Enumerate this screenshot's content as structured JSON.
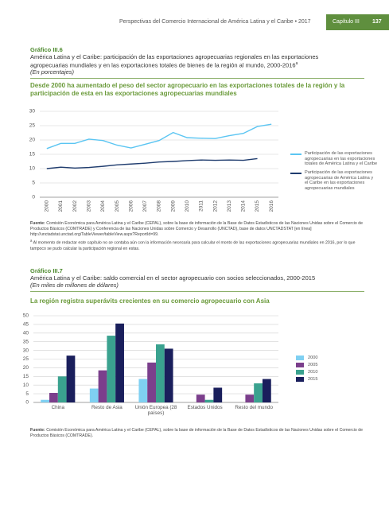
{
  "header": {
    "running_title": "Perspectivas del Comercio Internacional de América Latina y el Caribe • 2017",
    "chapter": "Capítulo III",
    "page": "137"
  },
  "chart_data": [
    {
      "type": "line",
      "figure_label": "Gráfico III.6",
      "title": "América Latina y el Caribe: participación de las exportaciones agropecuarias regionales en las exportaciones agropecuarias mundiales y en las exportaciones totales de bienes de la región al mundo, 2000-2016",
      "title_note_mark": "a",
      "subtitle": "(En porcentajes)",
      "heading": "Desde 2000 ha aumentado el peso del sector agropecuario en las exportaciones totales de la región y la participación de esta en las exportaciones agropecuarias mundiales",
      "categories": [
        "2000",
        "2001",
        "2002",
        "2003",
        "2004",
        "2005",
        "2006",
        "2007",
        "2008",
        "2009",
        "2010",
        "2011",
        "2012",
        "2013",
        "2014",
        "2015",
        "2016"
      ],
      "series": [
        {
          "name": "Participación de las exportaciones agropecuarias en las exportaciones totales de América Latina y el Caribe",
          "color": "#5bc5f2",
          "values": [
            17,
            18.8,
            18.8,
            20.3,
            19.8,
            18.2,
            17.2,
            18.5,
            19.8,
            22.6,
            20.8,
            20.6,
            20.5,
            21.5,
            22.3,
            24.7,
            25.5
          ]
        },
        {
          "name": "Participación de las exportaciones agropecuarias de América Latina y el Caribe en las exportaciones agropecuarias mundiales",
          "color": "#1f3c6e",
          "values": [
            10,
            10.5,
            10.2,
            10.4,
            10.8,
            11.3,
            11.6,
            11.9,
            12.3,
            12.5,
            12.8,
            13.0,
            12.9,
            13.0,
            12.9,
            13.5,
            null
          ]
        }
      ],
      "ylim": [
        0,
        30
      ],
      "yticks": [
        0,
        5,
        10,
        15,
        20,
        25,
        30
      ],
      "grid": true,
      "source_label": "Fuente:",
      "source": "Comisión Económica para América Latina y el Caribe (CEPAL), sobre la base de información de la Base de Datos Estadísticos de las Naciones Unidas sobre el Comercio de Productos Básicos (COMTRADE) y Conferencia de las Naciones Unidas sobre Comercio y Desarrollo (UNCTAD), base de datos UNCTADSTAT [en línea] http://unctadstat.unctad.org/TableViewer/tableView.aspx?ReportId=99.",
      "note_mark": "a",
      "note": "Al momento de redactar este capítulo no se contaba aún con la información necesaria para calcular el monto de las exportaciones agropecuarias mundiales en 2016, por lo que tampoco se pudo calcular la participación regional en estas."
    },
    {
      "type": "bar",
      "figure_label": "Gráfico III.7",
      "title": "América Latina y el Caribe: saldo comercial en el sector agropecuario con socios seleccionados, 2000-2015",
      "subtitle": "(En miles de millones de dólares)",
      "heading": "La región registra superávits crecientes en su comercio agropecuario con Asia",
      "categories": [
        "China",
        "Resto de Asia",
        "Unión Europea (28 países)",
        "Estados Unidos",
        "Resto del mundo"
      ],
      "series": [
        {
          "name": "2000",
          "color": "#7fd0f2",
          "values": [
            1.5,
            8,
            13.5,
            0,
            0
          ]
        },
        {
          "name": "2005",
          "color": "#7b3f8c",
          "values": [
            5.5,
            18.5,
            23,
            4.5,
            4.5
          ]
        },
        {
          "name": "2010",
          "color": "#3aa28f",
          "values": [
            15,
            38.5,
            33.5,
            1.5,
            11
          ]
        },
        {
          "name": "2015",
          "color": "#1a1f5c",
          "values": [
            27,
            45.5,
            31,
            8.5,
            13.5
          ]
        }
      ],
      "ylim": [
        0,
        50
      ],
      "yticks": [
        0,
        5,
        10,
        15,
        20,
        25,
        30,
        35,
        40,
        45,
        50
      ],
      "grid": true,
      "source_label": "Fuente:",
      "source": "Comisión Económica para América Latina y el Caribe (CEPAL), sobre la base de información de la Base de Datos Estadísticos de las Naciones Unidas sobre el Comercio de Productos Básicos (COMTRADE)."
    }
  ]
}
